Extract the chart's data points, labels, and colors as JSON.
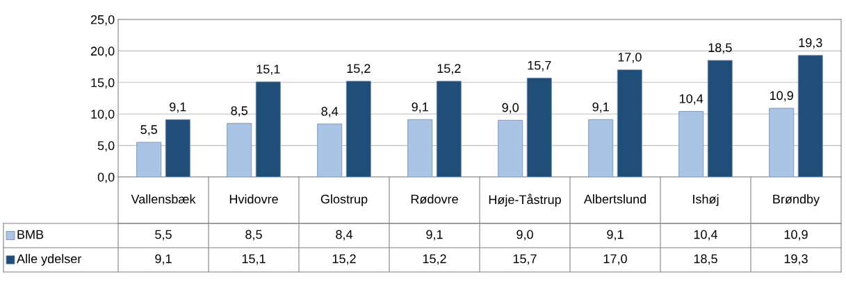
{
  "chart_data": {
    "type": "bar",
    "categories": [
      "Vallensbæk",
      "Hvidovre",
      "Glostrup",
      "Rødovre",
      "Høje-Tåstrup",
      "Albertslund",
      "Ishøj",
      "Brøndby"
    ],
    "series": [
      {
        "name": "BMB",
        "color": "#a9c4e4",
        "values": [
          5.5,
          8.5,
          8.4,
          9.1,
          9.0,
          9.1,
          10.4,
          10.9
        ],
        "value_labels": [
          "5,5",
          "8,5",
          "8,4",
          "9,1",
          "9,0",
          "9,1",
          "10,4",
          "10,9"
        ]
      },
      {
        "name": "Alle ydelser",
        "color": "#1f4e79",
        "values": [
          9.1,
          15.1,
          15.2,
          15.2,
          15.7,
          17.0,
          18.5,
          19.3
        ],
        "value_labels": [
          "9,1",
          "15,1",
          "15,2",
          "15,2",
          "15,7",
          "17,0",
          "18,5",
          "19,3"
        ]
      }
    ],
    "ylim": [
      0,
      25
    ],
    "yticks": [
      {
        "value": 0,
        "label": "0,0"
      },
      {
        "value": 5,
        "label": "5,0"
      },
      {
        "value": 10,
        "label": "10,0"
      },
      {
        "value": 15,
        "label": "15,0"
      },
      {
        "value": 20,
        "label": "20,0"
      },
      {
        "value": 25,
        "label": "25,0"
      }
    ],
    "grid": "y",
    "legend": "left"
  }
}
